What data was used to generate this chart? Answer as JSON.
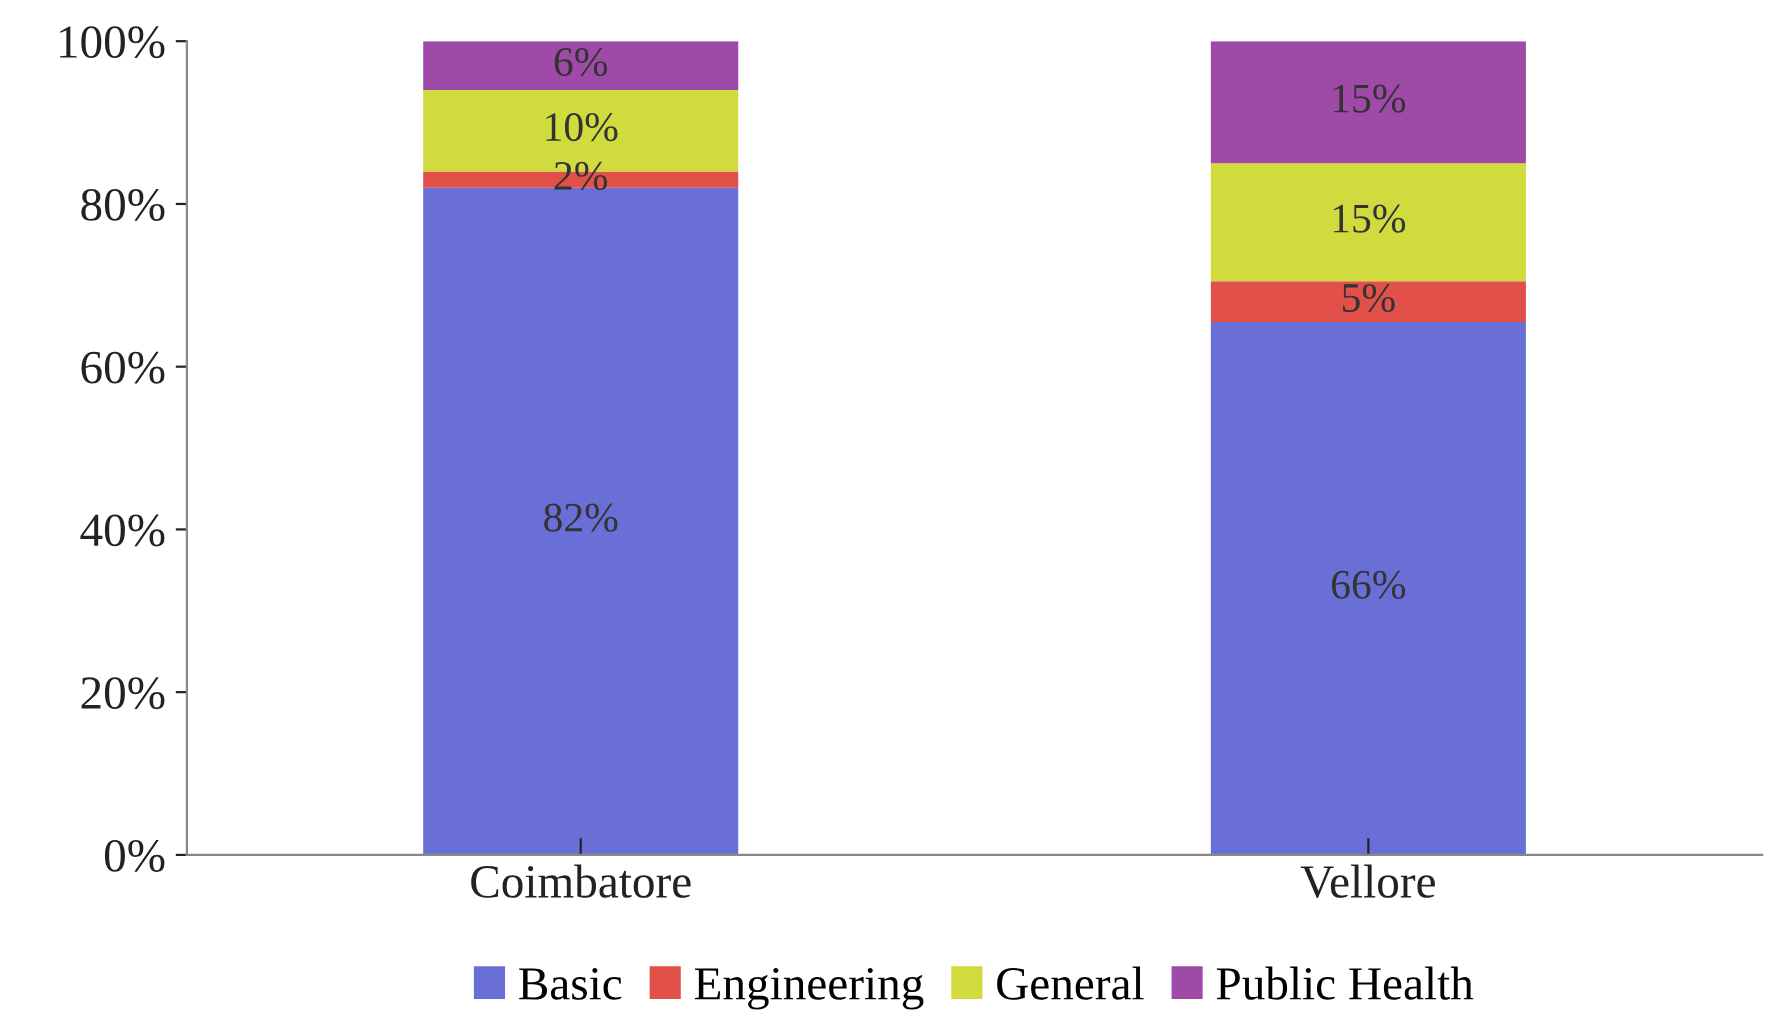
{
  "chart_data": {
    "type": "bar",
    "stacked": true,
    "categories": [
      "Coimbatore",
      "Vellore"
    ],
    "series": [
      {
        "name": "Basic",
        "color": "#6a6fd8",
        "values": [
          82,
          65.5
        ],
        "value_labels": [
          "82%",
          "66%"
        ]
      },
      {
        "name": "Engineering",
        "color": "#e2504a",
        "values": [
          2,
          5
        ],
        "value_labels": [
          "2%",
          "5%"
        ]
      },
      {
        "name": "General",
        "color": "#d2db3e",
        "values": [
          10,
          14.5
        ],
        "value_labels": [
          "10%",
          "15%"
        ]
      },
      {
        "name": "Public Health",
        "color": "#a04aa8",
        "values": [
          6,
          15
        ],
        "value_labels": [
          "6%",
          "15%"
        ]
      }
    ],
    "ylim": [
      0,
      100
    ],
    "yticks": [
      {
        "value": 0,
        "label": "0%"
      },
      {
        "value": 20,
        "label": "20%"
      },
      {
        "value": 40,
        "label": "40%"
      },
      {
        "value": 60,
        "label": "60%"
      },
      {
        "value": 80,
        "label": "80%"
      },
      {
        "value": 100,
        "label": "100%"
      }
    ],
    "grid": false,
    "legend": "bottom"
  }
}
